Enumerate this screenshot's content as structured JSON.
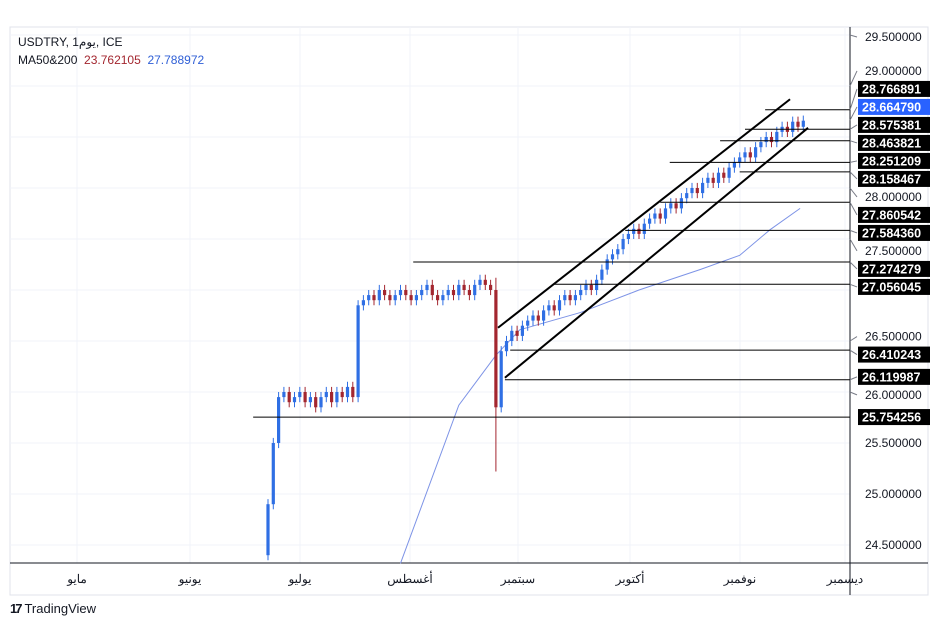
{
  "header": {
    "symbol_line": "USDTRY, 1يوم, ICE",
    "ma_label": "MA50&200",
    "ma50_value": "23.762105",
    "ma200_value": "27.788972"
  },
  "brand": "TradingView",
  "colors": {
    "up": "#2f6fe4",
    "down": "#a3262f",
    "ma": "#7d93e6",
    "current": "#2962ff",
    "ma50_text": "#a3262f",
    "ma200_text": "#2f5fd6"
  },
  "chart_data": {
    "type": "candlestick",
    "title": "USDTRY, 1D, ICE",
    "ylim": [
      24.3,
      29.7
    ],
    "y_ticks": [
      "29.500000",
      "29.000000",
      "28.000000",
      "27.500000",
      "26.500000",
      "26.000000",
      "25.500000",
      "25.000000",
      "24.500000"
    ],
    "x_ticks": [
      "مايو",
      "يونيو",
      "يوليو",
      "أغسطس",
      "سبتمبر",
      "أكتوبر",
      "نوفمبر",
      "ديسمبر"
    ],
    "closes": [
      24.9,
      25.5,
      25.95,
      26.0,
      25.9,
      25.95,
      26.0,
      25.9,
      25.95,
      25.85,
      25.95,
      26.0,
      25.9,
      26.0,
      25.95,
      26.05,
      25.95,
      26.85,
      26.9,
      26.95,
      26.9,
      27.0,
      26.95,
      26.9,
      26.95,
      27.0,
      26.95,
      26.9,
      26.95,
      27.0,
      27.05,
      26.95,
      26.9,
      26.95,
      27.0,
      26.95,
      27.05,
      27.0,
      26.95,
      27.05,
      27.1,
      27.05,
      27.0,
      25.85,
      26.4,
      26.5,
      26.6,
      26.55,
      26.65,
      26.7,
      26.75,
      26.7,
      26.8,
      26.85,
      26.8,
      26.9,
      26.95,
      26.9,
      26.95,
      27.0,
      27.05,
      27.0,
      27.1,
      27.2,
      27.3,
      27.35,
      27.4,
      27.5,
      27.55,
      27.6,
      27.55,
      27.65,
      27.7,
      27.75,
      27.7,
      27.8,
      27.85,
      27.8,
      27.9,
      27.95,
      28.0,
      27.95,
      28.05,
      28.1,
      28.05,
      28.15,
      28.1,
      28.2,
      28.25,
      28.3,
      28.35,
      28.3,
      28.4,
      28.45,
      28.5,
      28.45,
      28.55,
      28.6,
      28.55,
      28.65,
      28.6,
      28.66
    ],
    "first_open": 24.4,
    "moving_average": [
      [
        25,
        24.32
      ],
      [
        36,
        25.87
      ],
      [
        43,
        26.36
      ],
      [
        47.5,
        26.61
      ],
      [
        59,
        26.78
      ],
      [
        70,
        27.0
      ],
      [
        81.5,
        27.2
      ],
      [
        89,
        27.34
      ],
      [
        94.7,
        27.59
      ],
      [
        100.4,
        27.8
      ]
    ],
    "levels": [
      {
        "value": "28.766891",
        "start": 93.8
      },
      {
        "value": "28.575381",
        "start": 90
      },
      {
        "value": "28.463821",
        "start": 85.3
      },
      {
        "value": "28.251209",
        "start": 75.8
      },
      {
        "value": "28.158467",
        "start": 89
      },
      {
        "value": "27.860542",
        "start": 74
      },
      {
        "value": "27.584360",
        "start": 67.4
      },
      {
        "value": "27.274279",
        "start": 27.4
      },
      {
        "value": "27.056045",
        "start": 54
      },
      {
        "value": "26.410243",
        "start": 45.7
      },
      {
        "value": "26.119987",
        "start": 44.7
      },
      {
        "value": "25.754256",
        "start": -2.8
      }
    ],
    "current_price": "28.664790",
    "channel": [
      {
        "from": [
          43.4,
          26.63
        ],
        "to": [
          98.5,
          28.87
        ]
      },
      {
        "from": [
          44.7,
          26.14
        ],
        "to": [
          101.9,
          28.59
        ]
      }
    ]
  }
}
